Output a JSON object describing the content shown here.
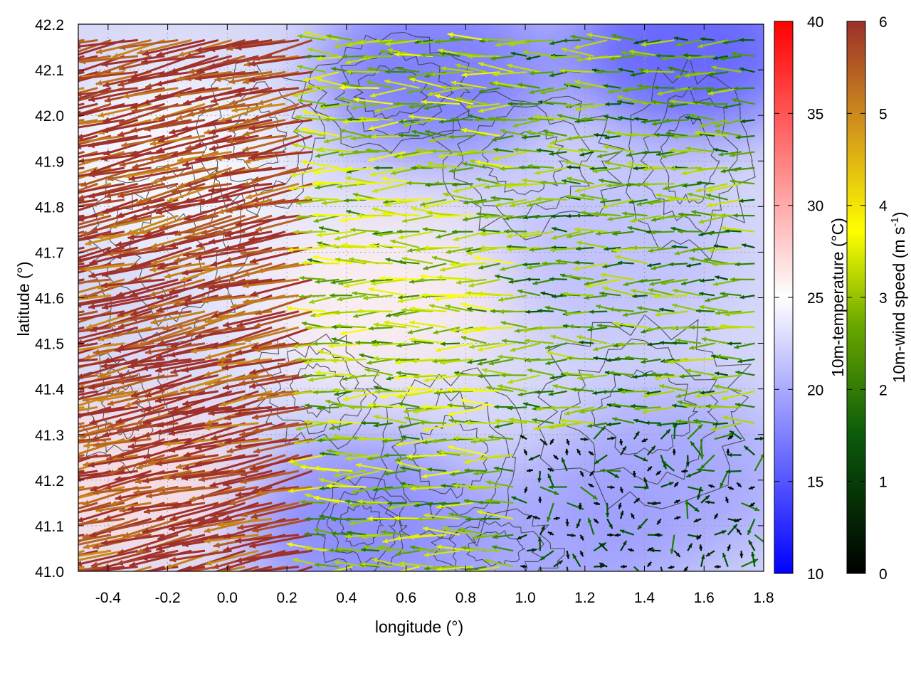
{
  "chart_data": {
    "type": "heatmap",
    "overlays": [
      "wind-vectors",
      "terrain-contours"
    ],
    "xlabel": "longitude (°)",
    "ylabel": "latitude (°)",
    "xlim": [
      -0.5,
      1.8
    ],
    "ylim": [
      41.0,
      42.2
    ],
    "x_ticks": [
      -0.4,
      -0.2,
      0.0,
      0.2,
      0.4,
      0.6,
      0.8,
      1.0,
      1.2,
      1.4,
      1.6,
      1.8
    ],
    "x_tick_labels": [
      "-0.4",
      "-0.2",
      "0.0",
      "0.2",
      "0.4",
      "0.6",
      "0.8",
      "1.0",
      "1.2",
      "1.4",
      "1.6",
      "1.8"
    ],
    "y_ticks": [
      41.0,
      41.1,
      41.2,
      41.3,
      41.4,
      41.5,
      41.6,
      41.7,
      41.8,
      41.9,
      42.0,
      42.1,
      42.2
    ],
    "y_tick_labels": [
      "41.0",
      "41.1",
      "41.2",
      "41.3",
      "41.4",
      "41.5",
      "41.6",
      "41.7",
      "41.8",
      "41.9",
      "42.0",
      "42.1",
      "42.2"
    ],
    "grid": true,
    "temperature_colorbar": {
      "label": "10m-temperature (°C)",
      "range": [
        10,
        40
      ],
      "ticks": [
        10,
        15,
        20,
        25,
        30,
        35,
        40
      ],
      "tick_labels": [
        "10",
        "15",
        "20",
        "25",
        "30",
        "35",
        "40"
      ],
      "colors": [
        "#0000ff",
        "#ffffff",
        "#ff0000"
      ]
    },
    "wind_colorbar": {
      "label_main": "10m-wind speed (m s",
      "label_sup": "-1",
      "label_end": ")",
      "range": [
        0,
        6
      ],
      "ticks": [
        0,
        1,
        2,
        3,
        4,
        5,
        6
      ],
      "tick_labels": [
        "0",
        "1",
        "2",
        "3",
        "4",
        "5",
        "6"
      ],
      "colors": [
        "#000000",
        "#006400",
        "#7fbf00",
        "#ffff00",
        "#d4a017",
        "#a0302a"
      ]
    },
    "temperature_field_regions": [
      {
        "lon": -0.35,
        "lat": 41.2,
        "temp": 27
      },
      {
        "lon": -0.2,
        "lat": 41.9,
        "temp": 25
      },
      {
        "lon": 0.3,
        "lat": 41.6,
        "temp": 24
      },
      {
        "lon": 0.55,
        "lat": 41.6,
        "temp": 26
      },
      {
        "lon": 0.45,
        "lat": 41.1,
        "temp": 17
      },
      {
        "lon": 0.7,
        "lat": 42.1,
        "temp": 16
      },
      {
        "lon": 1.3,
        "lat": 41.7,
        "temp": 21
      },
      {
        "lon": 1.5,
        "lat": 41.2,
        "temp": 19
      },
      {
        "lon": 1.55,
        "lat": 42.15,
        "temp": 14
      },
      {
        "lon": 1.1,
        "lat": 41.05,
        "temp": 19
      }
    ],
    "wind_vectors_summary": [
      {
        "region": "west",
        "lon": [
          -0.5,
          0.3
        ],
        "lat": [
          41.0,
          42.2
        ],
        "direction": "from east-southeast",
        "speed": 5.8
      },
      {
        "region": "central",
        "lon": [
          0.3,
          1.0
        ],
        "lat": [
          41.3,
          42.2
        ],
        "direction": "from east",
        "speed": 2.5
      },
      {
        "region": "southeast",
        "lon": [
          1.0,
          1.8
        ],
        "lat": [
          41.0,
          41.3
        ],
        "direction": "variable",
        "speed": 0.6
      },
      {
        "region": "northeast",
        "lon": [
          1.0,
          1.8
        ],
        "lat": [
          41.3,
          42.2
        ],
        "direction": "from east",
        "speed": 2.0
      }
    ]
  }
}
